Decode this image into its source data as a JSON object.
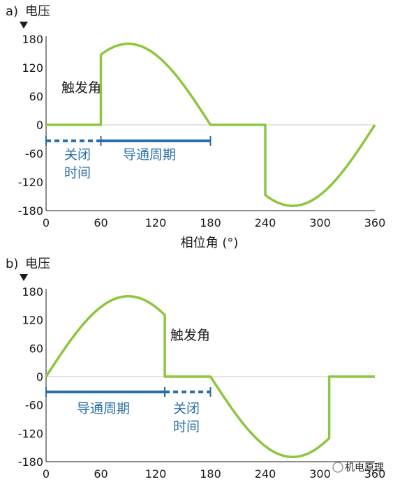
{
  "watermark": "机电原理",
  "chart_data": [
    {
      "panel_label": "a)",
      "type": "line",
      "ylabel": "电压",
      "xlabel": "相位角 (°)",
      "xlim": [
        0,
        360
      ],
      "ylim": [
        -180,
        180
      ],
      "x_ticks": [
        "0",
        "60",
        "120",
        "180",
        "240",
        "300",
        "360"
      ],
      "y_ticks": [
        "180",
        "120",
        "60",
        "0",
        "-60",
        "-120",
        "-180"
      ],
      "grid": "horizontal-zero-line",
      "line_color": "#8dc63f",
      "series": [
        {
          "x": [
            0,
            60,
            60,
            90,
            120,
            150,
            180,
            240,
            240,
            270,
            300,
            330,
            360
          ],
          "y": [
            0,
            0,
            147,
            170,
            147,
            85,
            0,
            0,
            -147,
            -170,
            -147,
            -85,
            0
          ]
        }
      ],
      "annotations": {
        "trigger_angle": "触发角",
        "off_time_line1": "关闭",
        "off_time_line2": "时间",
        "conduction": "导通周期"
      },
      "intervals": [
        {
          "label": "off",
          "x": [
            0,
            60
          ],
          "style": "dashed"
        },
        {
          "label": "conduction",
          "x": [
            60,
            180
          ],
          "style": "solid"
        }
      ]
    },
    {
      "panel_label": "b)",
      "type": "line",
      "ylabel": "电压",
      "xlabel": "",
      "xlim": [
        0,
        360
      ],
      "ylim": [
        -180,
        180
      ],
      "x_ticks": [
        "0",
        "60",
        "120",
        "180",
        "240",
        "300",
        "360"
      ],
      "y_ticks": [
        "180",
        "120",
        "60",
        "0",
        "-60",
        "-120",
        "-180"
      ],
      "grid": "horizontal-zero-line",
      "line_color": "#8dc63f",
      "series": [
        {
          "x": [
            0,
            30,
            60,
            90,
            120,
            130,
            130,
            180,
            210,
            240,
            270,
            300,
            310,
            310,
            360
          ],
          "y": [
            0,
            85,
            147,
            170,
            147,
            130,
            0,
            0,
            -85,
            -147,
            -170,
            -147,
            -130,
            0,
            0
          ]
        }
      ],
      "annotations": {
        "trigger_angle": "触发角",
        "conduction": "导通周期",
        "off_time_line1": "关闭",
        "off_time_line2": "时间"
      },
      "intervals": [
        {
          "label": "conduction",
          "x": [
            0,
            130
          ],
          "style": "solid"
        },
        {
          "label": "off",
          "x": [
            130,
            180
          ],
          "style": "dashed"
        }
      ]
    }
  ]
}
